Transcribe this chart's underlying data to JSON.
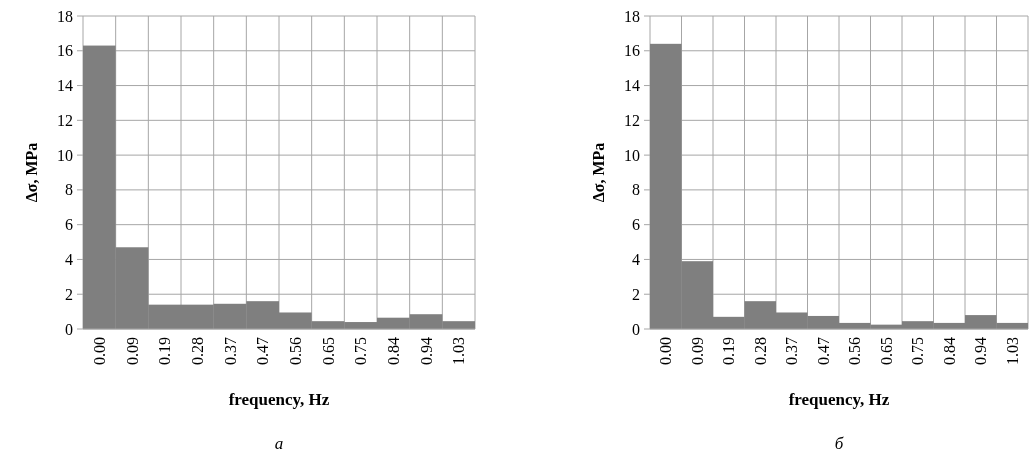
{
  "chart_data": [
    {
      "type": "bar",
      "xlabel": "frequency, Hz",
      "ylabel": "Δσ, MPa",
      "categories": [
        "0.00",
        "0.09",
        "0.19",
        "0.28",
        "0.37",
        "0.47",
        "0.56",
        "0.65",
        "0.75",
        "0.84",
        "0.94",
        "1.03"
      ],
      "series": [
        {
          "color": "#7f7f7f",
          "values": [
            16.3,
            4.7,
            1.4,
            1.4,
            1.45,
            1.6,
            0.95,
            0.45,
            0.4,
            0.65,
            0.85,
            0.45
          ]
        }
      ],
      "ylim": [
        0,
        18
      ],
      "yticks": [
        0,
        2,
        4,
        6,
        8,
        10,
        12,
        14,
        16,
        18
      ],
      "grid": true,
      "annotations": [
        "а"
      ]
    },
    {
      "type": "bar",
      "xlabel": "frequency, Hz",
      "ylabel": "Δσ, MPa",
      "categories": [
        "0.00",
        "0.09",
        "0.19",
        "0.28",
        "0.37",
        "0.47",
        "0.56",
        "0.65",
        "0.75",
        "0.84",
        "0.94",
        "1.03"
      ],
      "series": [
        {
          "color": "#7f7f7f",
          "values": [
            16.4,
            3.9,
            0.7,
            1.6,
            0.95,
            0.75,
            0.35,
            0.25,
            0.45,
            0.35,
            0.8,
            0.35
          ]
        }
      ],
      "ylim": [
        0,
        18
      ],
      "yticks": [
        0,
        2,
        4,
        6,
        8,
        10,
        12,
        14,
        16,
        18
      ],
      "grid": true,
      "annotations": [
        "б"
      ]
    }
  ]
}
